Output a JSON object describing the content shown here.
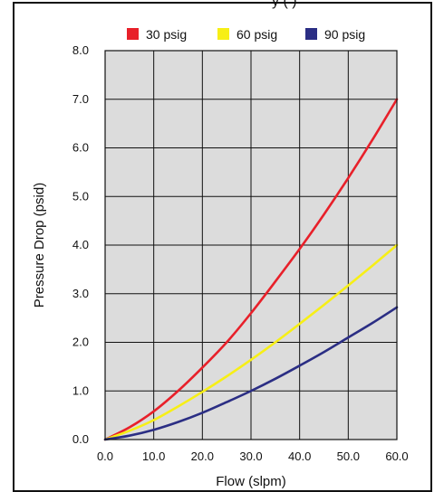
{
  "chart_data": {
    "type": "line",
    "title": "",
    "xlabel": "Flow (slpm)",
    "ylabel": "Pressure Drop (psid)",
    "xlim": [
      0,
      60
    ],
    "ylim": [
      0,
      8
    ],
    "x_ticks": [
      "0.0",
      "10.0",
      "20.0",
      "30.0",
      "40.0",
      "50.0",
      "60.0"
    ],
    "y_ticks": [
      "0.0",
      "1.0",
      "2.0",
      "3.0",
      "4.0",
      "5.0",
      "6.0",
      "7.0",
      "8.0"
    ],
    "grid": true,
    "legend_position": "top",
    "series": [
      {
        "name": "30 psig",
        "color": "#e8202a",
        "x": [
          0,
          5,
          10,
          15,
          20,
          25,
          30,
          35,
          40,
          45,
          50,
          55,
          60
        ],
        "y": [
          0,
          0.25,
          0.58,
          1.0,
          1.48,
          2.0,
          2.6,
          3.25,
          3.92,
          4.63,
          5.38,
          6.17,
          7.0
        ]
      },
      {
        "name": "60 psig",
        "color": "#f7ef16",
        "x": [
          0,
          5,
          10,
          15,
          20,
          25,
          30,
          35,
          40,
          45,
          50,
          55,
          60
        ],
        "y": [
          0,
          0.18,
          0.4,
          0.68,
          0.98,
          1.3,
          1.64,
          2.0,
          2.38,
          2.77,
          3.17,
          3.58,
          4.0
        ]
      },
      {
        "name": "90 psig",
        "color": "#2b2e84",
        "x": [
          0,
          5,
          10,
          15,
          20,
          25,
          30,
          35,
          40,
          45,
          50,
          55,
          60
        ],
        "y": [
          0,
          0.08,
          0.2,
          0.36,
          0.55,
          0.77,
          1.0,
          1.25,
          1.52,
          1.8,
          2.1,
          2.4,
          2.72
        ]
      }
    ]
  },
  "partial_title": "y (     )",
  "colors": {
    "plot_bg": "#dcdcdc",
    "grid": "#111111"
  }
}
